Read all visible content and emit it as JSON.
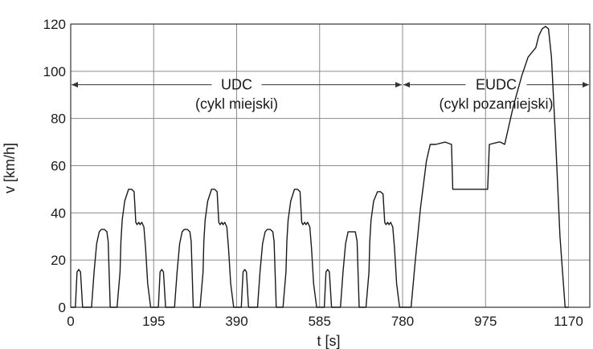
{
  "chart_data": {
    "type": "line",
    "title": "",
    "xlabel": "t [s]",
    "ylabel": "v [km/h]",
    "xlim": [
      0,
      1220
    ],
    "ylim": [
      0,
      120
    ],
    "xticks": [
      0,
      195,
      390,
      585,
      780,
      975,
      1170
    ],
    "xtick_labels": [
      "0",
      "195",
      "390",
      "585",
      "780",
      "975",
      "1170"
    ],
    "yticks": [
      0,
      20,
      40,
      60,
      80,
      100,
      120
    ],
    "ytick_labels": [
      "0",
      "20",
      "40",
      "60",
      "80",
      "100",
      "120"
    ],
    "grid": true,
    "phases": [
      {
        "name": "UDC",
        "description": "(cykl miejski)",
        "start": 0,
        "end": 780
      },
      {
        "name": "EUDC",
        "description": "(cykl pozamiejski)",
        "start": 780,
        "end": 1220
      }
    ],
    "series": [
      {
        "x": [
          0,
          11,
          15,
          19,
          23,
          28,
          49,
          55,
          61,
          67,
          72,
          79,
          85,
          88,
          93,
          109,
          116,
          118,
          121,
          127,
          136,
          143,
          149,
          153,
          156,
          160,
          163,
          167,
          172,
          176,
          181,
          188,
          195,
          206,
          210,
          214,
          218,
          223,
          244,
          250,
          256,
          262,
          267,
          274,
          280,
          283,
          288,
          304,
          311,
          313,
          316,
          322,
          331,
          338,
          344,
          348,
          351,
          355,
          358,
          362,
          367,
          371,
          376,
          383,
          390,
          401,
          405,
          409,
          413,
          418,
          439,
          445,
          451,
          457,
          462,
          469,
          475,
          478,
          483,
          499,
          506,
          508,
          511,
          517,
          526,
          533,
          539,
          543,
          546,
          550,
          553,
          557,
          562,
          566,
          571,
          578,
          585,
          596,
          600,
          604,
          608,
          613,
          634,
          640,
          646,
          652,
          657,
          669,
          673,
          678,
          694,
          701,
          703,
          706,
          712,
          721,
          728,
          734,
          738,
          741,
          745,
          748,
          752,
          757,
          761,
          766,
          773,
          780,
          800,
          810,
          822,
          836,
          845,
          852,
          858,
          880,
          895,
          898,
          902,
          928,
          945,
          968,
          980,
          984,
          1006,
          1010,
          1020,
          1040,
          1060,
          1075,
          1093,
          1100,
          1108,
          1116,
          1123,
          1130,
          1140,
          1150,
          1162,
          1170
        ],
        "y": [
          0,
          0,
          15,
          16,
          15,
          0,
          0,
          15,
          27,
          32,
          33,
          33,
          32,
          28,
          0,
          0,
          15,
          28,
          37,
          45,
          50,
          50,
          49,
          36,
          35,
          36,
          35,
          36,
          34,
          25,
          10,
          0,
          0,
          0,
          15,
          16,
          15,
          0,
          0,
          15,
          27,
          32,
          33,
          33,
          32,
          28,
          0,
          0,
          15,
          28,
          37,
          45,
          50,
          50,
          49,
          36,
          35,
          36,
          35,
          36,
          34,
          25,
          10,
          0,
          0,
          0,
          15,
          16,
          15,
          0,
          0,
          15,
          27,
          32,
          33,
          33,
          32,
          28,
          0,
          0,
          15,
          28,
          37,
          45,
          50,
          50,
          49,
          36,
          35,
          36,
          35,
          36,
          34,
          25,
          10,
          0,
          0,
          0,
          15,
          16,
          15,
          0,
          0,
          15,
          27,
          32,
          32,
          32,
          28,
          0,
          0,
          15,
          28,
          37,
          45,
          49,
          49,
          48,
          36,
          35,
          36,
          35,
          36,
          34,
          25,
          10,
          0,
          0,
          0,
          20,
          42,
          62,
          69,
          69,
          69,
          70,
          69,
          50,
          50,
          50,
          50,
          50,
          50,
          69,
          70,
          70,
          69,
          85,
          98,
          106,
          110,
          115,
          118,
          119,
          118,
          106,
          70,
          30,
          0,
          0
        ]
      }
    ]
  }
}
